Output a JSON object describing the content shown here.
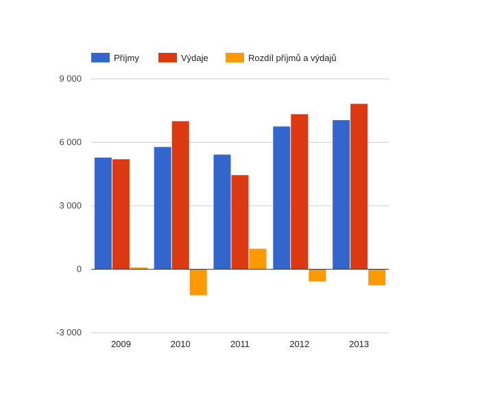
{
  "chart_data": {
    "type": "bar",
    "title": "",
    "xlabel": "",
    "ylabel": "",
    "categories": [
      "2009",
      "2010",
      "2011",
      "2012",
      "2013"
    ],
    "series": [
      {
        "name": "Příjmy",
        "color": "#3366cc",
        "values": [
          5280,
          5780,
          5420,
          6750,
          7050
        ]
      },
      {
        "name": "Výdaje",
        "color": "#dc3912",
        "values": [
          5200,
          7000,
          4450,
          7330,
          7820
        ]
      },
      {
        "name": "Rozdíl příjmů a výdajů",
        "color": "#ff9900",
        "values": [
          80,
          -1230,
          970,
          -580,
          -760
        ]
      }
    ],
    "ylim": [
      -3000,
      9000
    ],
    "yticks": [
      9000,
      6000,
      3000,
      0,
      -3000
    ],
    "ytick_labels": [
      "9 000",
      "6 000",
      "3 000",
      "0",
      "-3 000"
    ],
    "grid": true,
    "legend_position": "top"
  }
}
